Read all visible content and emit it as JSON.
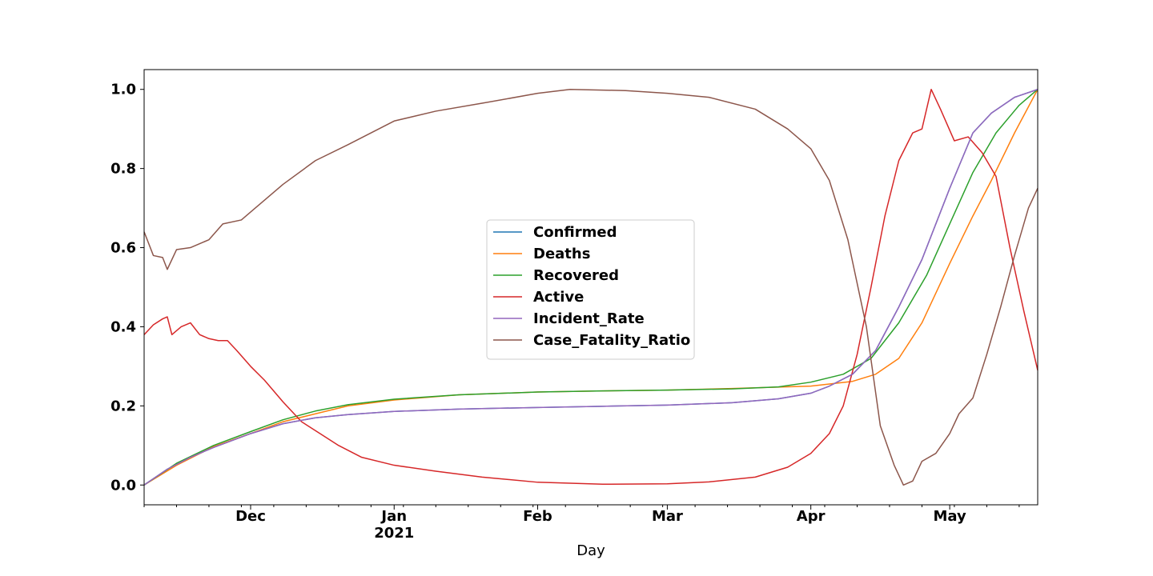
{
  "chart_data": {
    "type": "line",
    "title": "",
    "xlabel": "Day",
    "ylabel": "",
    "x_range": [
      "2020-11-08",
      "2021-05-20"
    ],
    "ylim": [
      -0.05,
      1.05
    ],
    "grid": false,
    "legend_position": "center",
    "x_ticks": [
      {
        "date": "2020-12-01",
        "label": "Dec"
      },
      {
        "date": "2021-01-01",
        "label": "Jan",
        "sublabel": "2021"
      },
      {
        "date": "2021-02-01",
        "label": "Feb"
      },
      {
        "date": "2021-03-01",
        "label": "Mar"
      },
      {
        "date": "2021-04-01",
        "label": "Apr"
      },
      {
        "date": "2021-05-01",
        "label": "May"
      }
    ],
    "y_ticks": [
      {
        "value": 0.0,
        "label": "0.0"
      },
      {
        "value": 0.2,
        "label": "0.2"
      },
      {
        "value": 0.4,
        "label": "0.4"
      },
      {
        "value": 0.6,
        "label": "0.6"
      },
      {
        "value": 0.8,
        "label": "0.8"
      },
      {
        "value": 1.0,
        "label": "1.0"
      }
    ],
    "series": [
      {
        "name": "Confirmed",
        "color": "#1f77b4",
        "points": [
          [
            "2020-11-08",
            0.0
          ],
          [
            "2020-11-13",
            0.04
          ],
          [
            "2020-11-18",
            0.07
          ],
          [
            "2020-11-23",
            0.095
          ],
          [
            "2020-12-01",
            0.13
          ],
          [
            "2020-12-08",
            0.155
          ],
          [
            "2020-12-15",
            0.17
          ],
          [
            "2020-12-22",
            0.178
          ],
          [
            "2021-01-01",
            0.186
          ],
          [
            "2021-01-15",
            0.192
          ],
          [
            "2021-02-01",
            0.196
          ],
          [
            "2021-02-15",
            0.199
          ],
          [
            "2021-03-01",
            0.202
          ],
          [
            "2021-03-15",
            0.208
          ],
          [
            "2021-03-25",
            0.218
          ],
          [
            "2021-04-01",
            0.232
          ],
          [
            "2021-04-05",
            0.25
          ],
          [
            "2021-04-10",
            0.28
          ],
          [
            "2021-04-15",
            0.34
          ],
          [
            "2021-04-20",
            0.45
          ],
          [
            "2021-04-25",
            0.57
          ],
          [
            "2021-05-01",
            0.75
          ],
          [
            "2021-05-06",
            0.89
          ],
          [
            "2021-05-10",
            0.94
          ],
          [
            "2021-05-15",
            0.98
          ],
          [
            "2021-05-20",
            1.0
          ]
        ]
      },
      {
        "name": "Deaths",
        "color": "#ff7f0e",
        "points": [
          [
            "2020-11-08",
            0.0
          ],
          [
            "2020-11-15",
            0.05
          ],
          [
            "2020-11-23",
            0.097
          ],
          [
            "2020-12-01",
            0.13
          ],
          [
            "2020-12-08",
            0.16
          ],
          [
            "2020-12-15",
            0.18
          ],
          [
            "2020-12-22",
            0.2
          ],
          [
            "2021-01-01",
            0.215
          ],
          [
            "2021-01-15",
            0.228
          ],
          [
            "2021-02-01",
            0.235
          ],
          [
            "2021-02-15",
            0.238
          ],
          [
            "2021-03-01",
            0.24
          ],
          [
            "2021-03-15",
            0.244
          ],
          [
            "2021-04-01",
            0.25
          ],
          [
            "2021-04-10",
            0.262
          ],
          [
            "2021-04-15",
            0.28
          ],
          [
            "2021-04-20",
            0.32
          ],
          [
            "2021-04-25",
            0.41
          ],
          [
            "2021-05-01",
            0.56
          ],
          [
            "2021-05-06",
            0.68
          ],
          [
            "2021-05-10",
            0.77
          ],
          [
            "2021-05-15",
            0.89
          ],
          [
            "2021-05-20",
            1.0
          ]
        ]
      },
      {
        "name": "Recovered",
        "color": "#2ca02c",
        "points": [
          [
            "2020-11-08",
            0.0
          ],
          [
            "2020-11-15",
            0.055
          ],
          [
            "2020-11-23",
            0.1
          ],
          [
            "2020-12-01",
            0.135
          ],
          [
            "2020-12-08",
            0.165
          ],
          [
            "2020-12-15",
            0.187
          ],
          [
            "2020-12-22",
            0.203
          ],
          [
            "2021-01-01",
            0.217
          ],
          [
            "2021-01-15",
            0.228
          ],
          [
            "2021-02-01",
            0.235
          ],
          [
            "2021-02-15",
            0.238
          ],
          [
            "2021-03-01",
            0.24
          ],
          [
            "2021-03-15",
            0.243
          ],
          [
            "2021-03-25",
            0.248
          ],
          [
            "2021-04-01",
            0.26
          ],
          [
            "2021-04-08",
            0.28
          ],
          [
            "2021-04-14",
            0.32
          ],
          [
            "2021-04-20",
            0.41
          ],
          [
            "2021-04-26",
            0.53
          ],
          [
            "2021-05-01",
            0.66
          ],
          [
            "2021-05-06",
            0.79
          ],
          [
            "2021-05-11",
            0.89
          ],
          [
            "2021-05-16",
            0.96
          ],
          [
            "2021-05-20",
            1.0
          ]
        ]
      },
      {
        "name": "Active",
        "color": "#d62728",
        "points": [
          [
            "2020-11-08",
            0.38
          ],
          [
            "2020-11-10",
            0.405
          ],
          [
            "2020-11-12",
            0.42
          ],
          [
            "2020-11-13",
            0.425
          ],
          [
            "2020-11-14",
            0.38
          ],
          [
            "2020-11-16",
            0.4
          ],
          [
            "2020-11-18",
            0.41
          ],
          [
            "2020-11-20",
            0.38
          ],
          [
            "2020-11-22",
            0.37
          ],
          [
            "2020-11-24",
            0.365
          ],
          [
            "2020-11-26",
            0.365
          ],
          [
            "2020-11-28",
            0.34
          ],
          [
            "2020-12-01",
            0.3
          ],
          [
            "2020-12-04",
            0.265
          ],
          [
            "2020-12-08",
            0.21
          ],
          [
            "2020-12-12",
            0.16
          ],
          [
            "2020-12-16",
            0.13
          ],
          [
            "2020-12-20",
            0.1
          ],
          [
            "2020-12-25",
            0.07
          ],
          [
            "2021-01-01",
            0.05
          ],
          [
            "2021-01-10",
            0.035
          ],
          [
            "2021-01-20",
            0.02
          ],
          [
            "2021-02-01",
            0.007
          ],
          [
            "2021-02-15",
            0.002
          ],
          [
            "2021-03-01",
            0.003
          ],
          [
            "2021-03-10",
            0.008
          ],
          [
            "2021-03-20",
            0.02
          ],
          [
            "2021-03-27",
            0.045
          ],
          [
            "2021-04-01",
            0.08
          ],
          [
            "2021-04-05",
            0.13
          ],
          [
            "2021-04-08",
            0.2
          ],
          [
            "2021-04-11",
            0.33
          ],
          [
            "2021-04-14",
            0.5
          ],
          [
            "2021-04-17",
            0.68
          ],
          [
            "2021-04-20",
            0.82
          ],
          [
            "2021-04-23",
            0.89
          ],
          [
            "2021-04-25",
            0.9
          ],
          [
            "2021-04-27",
            1.0
          ],
          [
            "2021-04-29",
            0.95
          ],
          [
            "2021-05-02",
            0.87
          ],
          [
            "2021-05-05",
            0.88
          ],
          [
            "2021-05-08",
            0.84
          ],
          [
            "2021-05-11",
            0.78
          ],
          [
            "2021-05-14",
            0.6
          ],
          [
            "2021-05-17",
            0.44
          ],
          [
            "2021-05-20",
            0.29
          ]
        ]
      },
      {
        "name": "Incident_Rate",
        "color": "#9467bd",
        "points": [
          [
            "2020-11-08",
            0.0
          ],
          [
            "2020-11-13",
            0.04
          ],
          [
            "2020-11-18",
            0.07
          ],
          [
            "2020-11-23",
            0.095
          ],
          [
            "2020-12-01",
            0.13
          ],
          [
            "2020-12-08",
            0.155
          ],
          [
            "2020-12-15",
            0.17
          ],
          [
            "2020-12-22",
            0.178
          ],
          [
            "2021-01-01",
            0.186
          ],
          [
            "2021-01-15",
            0.192
          ],
          [
            "2021-02-01",
            0.196
          ],
          [
            "2021-02-15",
            0.199
          ],
          [
            "2021-03-01",
            0.202
          ],
          [
            "2021-03-15",
            0.208
          ],
          [
            "2021-03-25",
            0.218
          ],
          [
            "2021-04-01",
            0.232
          ],
          [
            "2021-04-05",
            0.25
          ],
          [
            "2021-04-10",
            0.28
          ],
          [
            "2021-04-15",
            0.34
          ],
          [
            "2021-04-20",
            0.45
          ],
          [
            "2021-04-25",
            0.57
          ],
          [
            "2021-05-01",
            0.75
          ],
          [
            "2021-05-06",
            0.89
          ],
          [
            "2021-05-10",
            0.94
          ],
          [
            "2021-05-15",
            0.98
          ],
          [
            "2021-05-20",
            1.0
          ]
        ]
      },
      {
        "name": "Case_Fatality_Ratio",
        "color": "#8c564b",
        "points": [
          [
            "2020-11-08",
            0.64
          ],
          [
            "2020-11-10",
            0.58
          ],
          [
            "2020-11-12",
            0.575
          ],
          [
            "2020-11-13",
            0.545
          ],
          [
            "2020-11-15",
            0.595
          ],
          [
            "2020-11-18",
            0.6
          ],
          [
            "2020-11-22",
            0.62
          ],
          [
            "2020-11-25",
            0.66
          ],
          [
            "2020-11-29",
            0.67
          ],
          [
            "2020-12-02",
            0.7
          ],
          [
            "2020-12-08",
            0.76
          ],
          [
            "2020-12-15",
            0.82
          ],
          [
            "2020-12-22",
            0.86
          ],
          [
            "2021-01-01",
            0.92
          ],
          [
            "2021-01-10",
            0.945
          ],
          [
            "2021-01-20",
            0.965
          ],
          [
            "2021-02-01",
            0.99
          ],
          [
            "2021-02-08",
            1.0
          ],
          [
            "2021-02-20",
            0.997
          ],
          [
            "2021-03-01",
            0.99
          ],
          [
            "2021-03-10",
            0.98
          ],
          [
            "2021-03-20",
            0.95
          ],
          [
            "2021-03-27",
            0.9
          ],
          [
            "2021-04-01",
            0.85
          ],
          [
            "2021-04-05",
            0.77
          ],
          [
            "2021-04-09",
            0.62
          ],
          [
            "2021-04-13",
            0.4
          ],
          [
            "2021-04-16",
            0.15
          ],
          [
            "2021-04-19",
            0.05
          ],
          [
            "2021-04-21",
            0.0
          ],
          [
            "2021-04-23",
            0.01
          ],
          [
            "2021-04-25",
            0.06
          ],
          [
            "2021-04-28",
            0.08
          ],
          [
            "2021-05-01",
            0.13
          ],
          [
            "2021-05-03",
            0.18
          ],
          [
            "2021-05-06",
            0.22
          ],
          [
            "2021-05-09",
            0.33
          ],
          [
            "2021-05-12",
            0.45
          ],
          [
            "2021-05-15",
            0.58
          ],
          [
            "2021-05-18",
            0.7
          ],
          [
            "2021-05-20",
            0.75
          ]
        ]
      }
    ]
  }
}
